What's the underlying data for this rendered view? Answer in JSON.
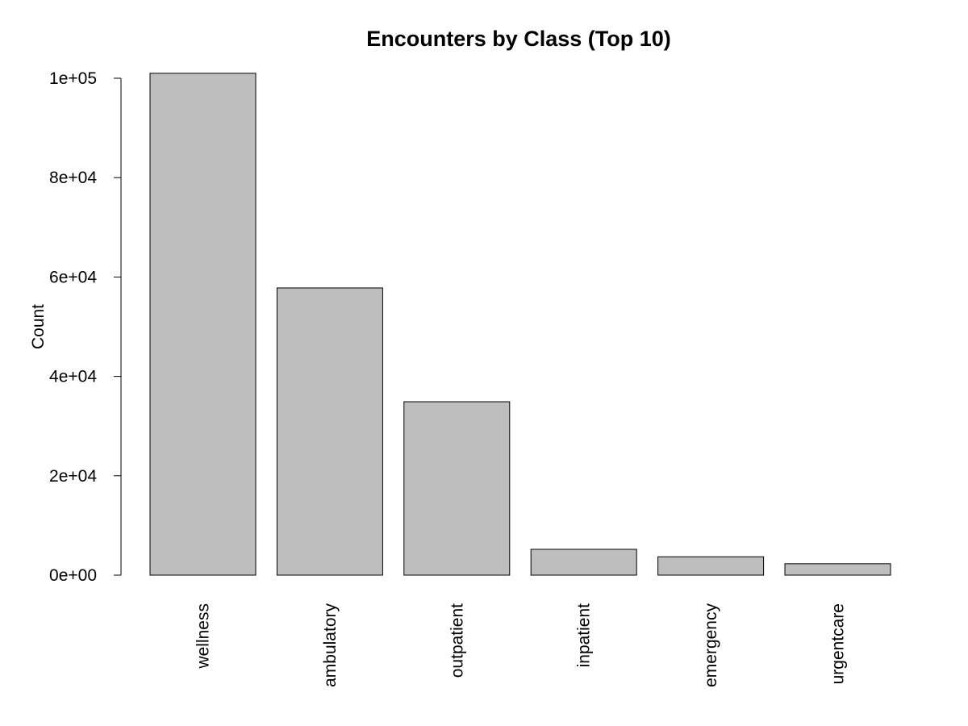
{
  "chart_data": {
    "type": "bar",
    "title": "Encounters by Class (Top 10)",
    "xlabel": "",
    "ylabel": "Count",
    "categories": [
      "wellness",
      "ambulatory",
      "outpatient",
      "inpatient",
      "emergency",
      "urgentcare"
    ],
    "values": [
      101000,
      57800,
      34900,
      5200,
      3700,
      2300
    ],
    "ylim": [
      0,
      100000
    ],
    "yticks": [
      0,
      20000,
      40000,
      60000,
      80000,
      100000
    ],
    "ytick_labels": [
      "0e+00",
      "2e+04",
      "4e+04",
      "6e+04",
      "8e+04",
      "1e+05"
    ],
    "bar_color": "#bebebe",
    "grid": false,
    "legend": "none"
  }
}
